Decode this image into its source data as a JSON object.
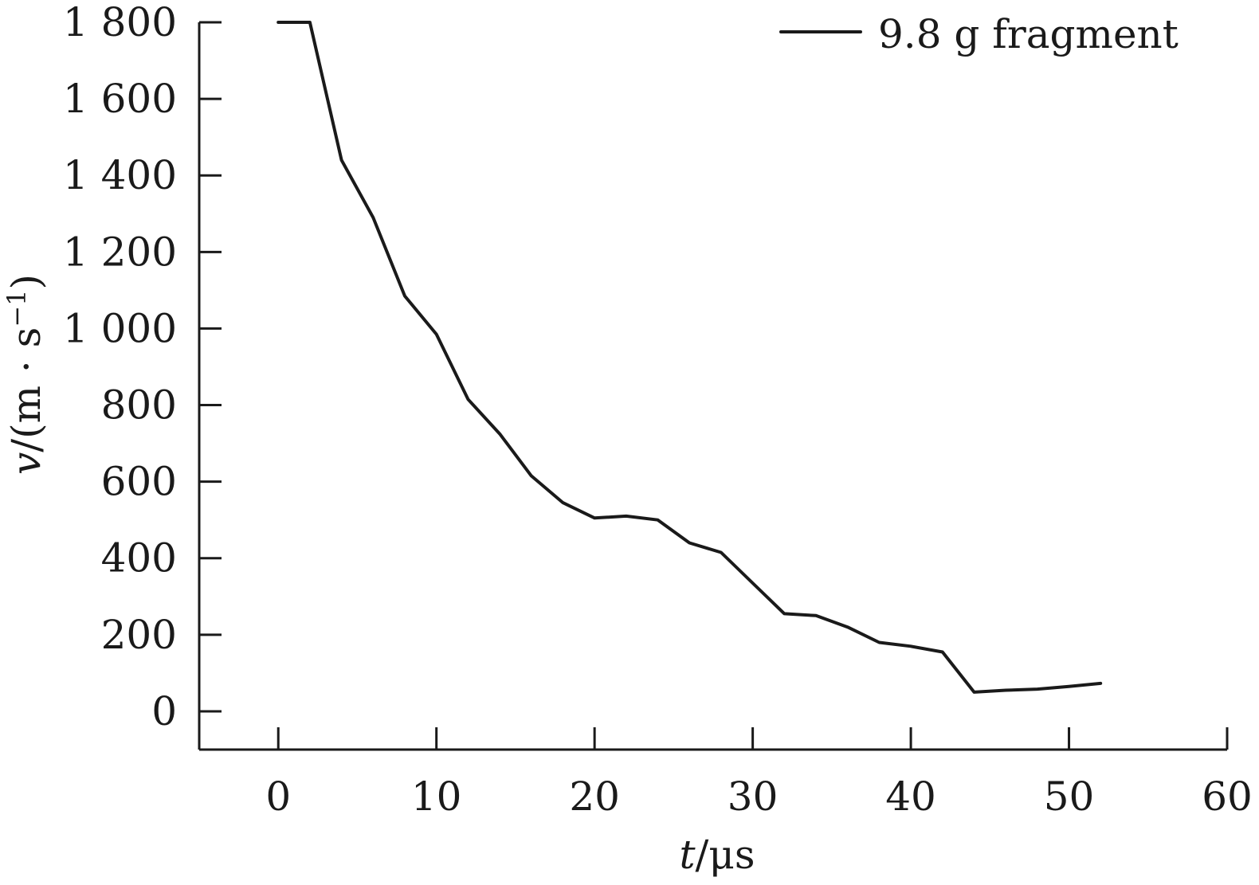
{
  "chart_data": {
    "type": "line",
    "xlabel_var": "t",
    "xlabel_unit": "/μs",
    "ylabel_var": "v",
    "ylabel_unit_pre": "/(m · s",
    "ylabel_unit_sup": "−1",
    "ylabel_unit_post": ")",
    "xlim": [
      -5,
      60
    ],
    "ylim": [
      -100,
      1800
    ],
    "x_ticks": [
      0,
      10,
      20,
      30,
      40,
      50,
      60
    ],
    "x_tick_labels": [
      "0",
      "10",
      "20",
      "30",
      "40",
      "50",
      "60"
    ],
    "y_ticks": [
      0,
      200,
      400,
      600,
      800,
      1000,
      1200,
      1400,
      1600,
      1800
    ],
    "y_tick_labels": [
      "0",
      "200",
      "400",
      "600",
      "800",
      "1 000",
      "1 200",
      "1 400",
      "1 600",
      "1 800"
    ],
    "grid": false,
    "legend_position": "top-right",
    "series": [
      {
        "name": "9.8 g fragment",
        "color": "#1a1a1a",
        "x": [
          0,
          2,
          4,
          6,
          8,
          10,
          12,
          14,
          16,
          18,
          20,
          22,
          24,
          26,
          28,
          30,
          32,
          34,
          36,
          38,
          40,
          42,
          44,
          46,
          48,
          50,
          52
        ],
        "y": [
          1800,
          1800,
          1440,
          1290,
          1085,
          985,
          815,
          725,
          615,
          545,
          505,
          510,
          500,
          440,
          415,
          335,
          255,
          250,
          220,
          180,
          170,
          155,
          50,
          55,
          58,
          65,
          73
        ]
      }
    ]
  }
}
